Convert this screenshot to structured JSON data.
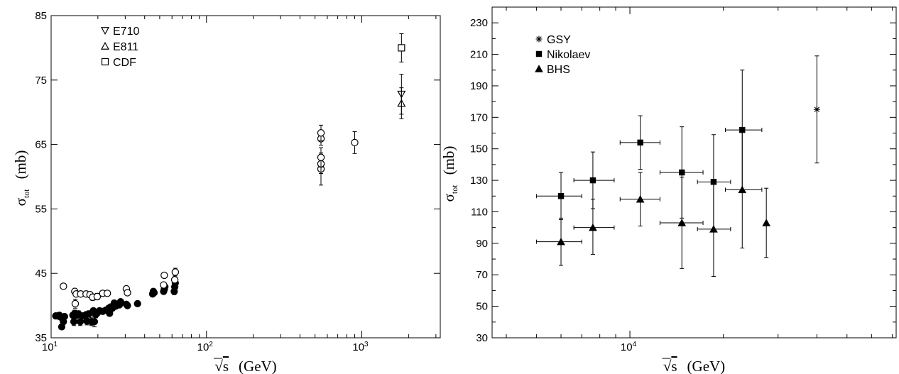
{
  "chart_data": [
    {
      "type": "scatter",
      "title": "",
      "xscale": "log",
      "xlim": [
        10,
        3200
      ],
      "ylim": [
        35,
        85
      ],
      "x_ticks": [
        {
          "base": "10",
          "exp": "1",
          "value": 10
        },
        {
          "base": "10",
          "exp": "2",
          "value": 100
        },
        {
          "base": "10",
          "exp": "3",
          "value": 1000
        }
      ],
      "y_ticks": [
        "35",
        "45",
        "55",
        "65",
        "75",
        "85"
      ],
      "xlabel": {
        "sqrt": "√",
        "var": "s",
        "unit": "(GeV)"
      },
      "ylabel": {
        "sigma": "σ",
        "sub": "tot",
        "unit": "(mb)"
      },
      "legend": {
        "placement": "top-left",
        "entries": [
          {
            "label": "E710",
            "marker": "triangle-down-open"
          },
          {
            "label": "E811",
            "marker": "triangle-up-open"
          },
          {
            "label": "CDF",
            "marker": "square-open"
          }
        ]
      },
      "series": [
        {
          "marker": "circle-filled",
          "points": [
            [
              10.7,
              38.4,
              0.3
            ],
            [
              11.0,
              38.4,
              0.3
            ],
            [
              11.3,
              38.5,
              0.3
            ],
            [
              11.5,
              38.2,
              0.3
            ],
            [
              11.7,
              36.7,
              0.4
            ],
            [
              12.0,
              37.5,
              0.4
            ],
            [
              12.2,
              38.3,
              0.3
            ],
            [
              13.8,
              38.5,
              0.4
            ],
            [
              14.0,
              37.5,
              0.6
            ],
            [
              14.2,
              38.8,
              0.5
            ],
            [
              14.5,
              38.5,
              0.5
            ],
            [
              15.0,
              38.7,
              0.5
            ],
            [
              15.4,
              37.5,
              0.6
            ],
            [
              16.0,
              38.4,
              0.4
            ],
            [
              16.8,
              38.6,
              0.4
            ],
            [
              17.0,
              37.6,
              0.6
            ],
            [
              17.5,
              38.7,
              0.5
            ],
            [
              18.2,
              37.5,
              0.6
            ],
            [
              18.7,
              39.2,
              0.4
            ],
            [
              19.0,
              37.5,
              0.8
            ],
            [
              19.4,
              38.6,
              0.5
            ],
            [
              19.9,
              38.9,
              0.4
            ],
            [
              20.5,
              39.2,
              0.4
            ],
            [
              21.5,
              39.1,
              0.4
            ],
            [
              22.5,
              39.3,
              0.4
            ],
            [
              23.5,
              39.6,
              0.4
            ],
            [
              23.8,
              38.8,
              0.4
            ],
            [
              24.2,
              39.8,
              0.4
            ],
            [
              24.8,
              39.6,
              0.4
            ],
            [
              25.5,
              40.4,
              0.4
            ],
            [
              26.0,
              39.9,
              0.4
            ],
            [
              27.5,
              40.1,
              0.3
            ],
            [
              28.0,
              40.6,
              0.3
            ],
            [
              30.5,
              40.2,
              0.4
            ],
            [
              31.0,
              40.0,
              0.4
            ],
            [
              36.0,
              40.3,
              0.4
            ],
            [
              45.0,
              41.8,
              0.4
            ],
            [
              45.5,
              42.2,
              0.4
            ],
            [
              46.0,
              42.0,
              0.4
            ],
            [
              53.0,
              42.2,
              0.4
            ],
            [
              53.5,
              42.5,
              0.4
            ],
            [
              54.0,
              42.9,
              0.4
            ],
            [
              62.0,
              42.2,
              0.5
            ],
            [
              62.5,
              42.9,
              0.5
            ],
            [
              63.0,
              43.5,
              0.5
            ]
          ]
        },
        {
          "marker": "circle-open",
          "points": [
            [
              12.0,
              43.0,
              0.3
            ],
            [
              14.2,
              42.2,
              0.3
            ],
            [
              14.5,
              41.8,
              0.3
            ],
            [
              14.3,
              40.3,
              0.7
            ],
            [
              15.5,
              41.8,
              0.3
            ],
            [
              16.8,
              41.8,
              0.3
            ],
            [
              17.8,
              41.7,
              0.3
            ],
            [
              18.5,
              41.3,
              0.5
            ],
            [
              19.8,
              41.4,
              0.5
            ],
            [
              21.5,
              41.9,
              0.3
            ],
            [
              23.0,
              41.9,
              0.3
            ],
            [
              30.5,
              42.6,
              0.3
            ],
            [
              31.0,
              42.0,
              0.3
            ],
            [
              53.0,
              43.2,
              0.4
            ],
            [
              53.5,
              44.7,
              0.4
            ],
            [
              62.5,
              44.0,
              0.6
            ],
            [
              63.0,
              45.2,
              0.6
            ],
            [
              546,
              61.2,
              2.5
            ],
            [
              546,
              62.0,
              1.5
            ],
            [
              546,
              63.0,
              1.5
            ],
            [
              546,
              65.9,
              1.0
            ],
            [
              546,
              66.8,
              1.2
            ],
            [
              900,
              65.3,
              1.7
            ]
          ]
        },
        {
          "marker": "triangle-down-open",
          "points": [
            [
              1800,
              72.8,
              3.1
            ]
          ]
        },
        {
          "marker": "triangle-up-open",
          "points": [
            [
              1800,
              71.4,
              2.4
            ]
          ]
        },
        {
          "marker": "square-open",
          "points": [
            [
              1800,
              80.0,
              2.2
            ]
          ]
        }
      ]
    },
    {
      "type": "scatter",
      "title": "",
      "xscale": "log",
      "xlim": [
        3600,
        72000
      ],
      "ylim": [
        30,
        240
      ],
      "x_ticks": [
        {
          "base": "10",
          "exp": "4",
          "value": 10000
        }
      ],
      "y_ticks": [
        "30",
        "50",
        "70",
        "90",
        "110",
        "130",
        "150",
        "170",
        "190",
        "210",
        "230"
      ],
      "xlabel": {
        "sqrt": "√",
        "var": "s",
        "unit": "(GeV)"
      },
      "ylabel": {
        "sigma": "σ",
        "sub": "tot",
        "unit": "(mb)"
      },
      "legend": {
        "placement": "top-left",
        "entries": [
          {
            "label": "GSY",
            "marker": "asterisk"
          },
          {
            "label": "Nikolaev",
            "marker": "square-filled"
          },
          {
            "label": "BHS",
            "marker": "triangle-up-filled"
          }
        ]
      },
      "series": [
        {
          "name": "GSY",
          "marker": "asterisk",
          "points": [
            [
              40000,
              175,
              34,
              34,
              null,
              null
            ]
          ]
        },
        {
          "name": "Nikolaev",
          "marker": "square-filled",
          "points": [
            [
              6000,
              120,
              15,
              15,
              5000,
              7000
            ],
            [
              7600,
              130,
              18,
              18,
              6600,
              8900
            ],
            [
              10800,
              154,
              17,
              17,
              9300,
              12500
            ],
            [
              14700,
              135,
              29,
              29,
              12500,
              17200
            ],
            [
              18600,
              129,
              30,
              30,
              16500,
              21100
            ],
            [
              23000,
              162,
              38,
              38,
              20300,
              26600
            ]
          ]
        },
        {
          "name": "BHS",
          "marker": "triangle-up-filled",
          "points": [
            [
              6000,
              91,
              15,
              15,
              5000,
              7000
            ],
            [
              7600,
              100,
              17,
              18,
              6600,
              8900
            ],
            [
              10800,
              118,
              17,
              17,
              9300,
              12500
            ],
            [
              14700,
              103,
              29,
              29,
              12500,
              17200
            ],
            [
              18600,
              99,
              30,
              30,
              16500,
              21100
            ],
            [
              23000,
              124,
              37,
              37,
              20300,
              26600
            ],
            [
              27500,
              103,
              22,
              22,
              null,
              null
            ]
          ]
        }
      ]
    }
  ]
}
